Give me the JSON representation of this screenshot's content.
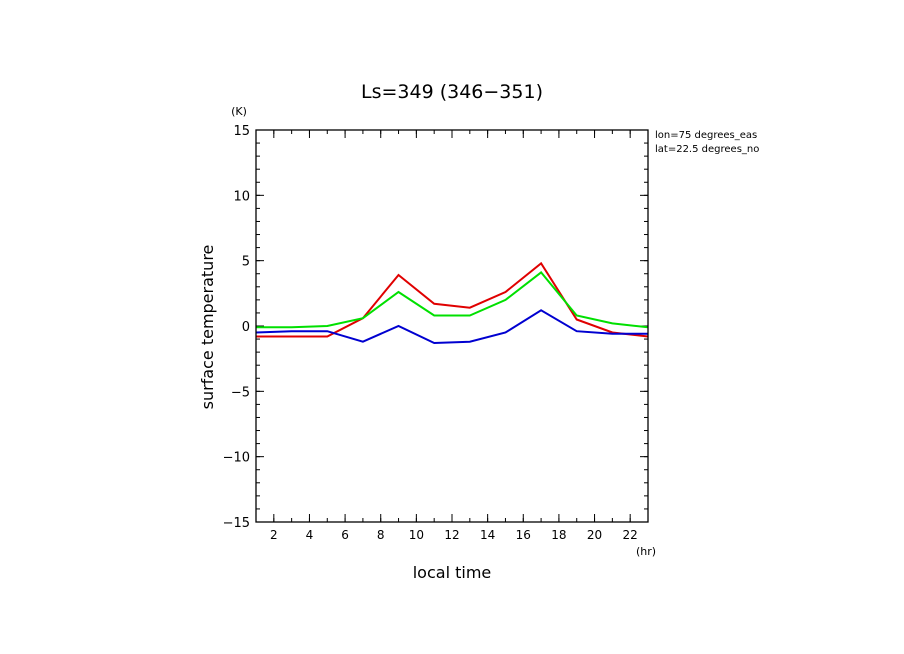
{
  "chart_data": {
    "type": "line",
    "title": "Ls=349 (346−351)",
    "xlabel": "local time",
    "ylabel": "surface temperature",
    "x_unit": "(hr)",
    "y_unit": "(K)",
    "annotations": [
      "lon=75 degrees_eas",
      "lat=22.5 degrees_no"
    ],
    "xlim": [
      1,
      23
    ],
    "ylim": [
      -15,
      15
    ],
    "x_ticks": [
      2,
      4,
      6,
      8,
      10,
      12,
      14,
      16,
      18,
      20,
      22
    ],
    "y_ticks": [
      15,
      10,
      5,
      0,
      -5,
      -10,
      -15
    ],
    "y_tick_labels": [
      "15",
      "10",
      "5",
      "0",
      "−5",
      "−10",
      "−15"
    ],
    "grid": false,
    "x": [
      1,
      3,
      5,
      7,
      9,
      11,
      13,
      15,
      17,
      19,
      21,
      23
    ],
    "series": [
      {
        "color": "#e00000",
        "values": [
          -0.8,
          -0.8,
          -0.8,
          0.6,
          3.9,
          1.7,
          1.4,
          2.6,
          4.8,
          0.5,
          -0.5,
          -0.8
        ]
      },
      {
        "color": "#00e000",
        "values": [
          -0.1,
          -0.1,
          0.0,
          0.6,
          2.6,
          0.8,
          0.8,
          2.0,
          4.1,
          0.8,
          0.2,
          -0.1
        ]
      },
      {
        "color": "#0000d0",
        "values": [
          -0.5,
          -0.4,
          -0.4,
          -1.2,
          0.0,
          -1.3,
          -1.2,
          -0.5,
          1.2,
          -0.4,
          -0.6,
          -0.6
        ]
      }
    ]
  }
}
